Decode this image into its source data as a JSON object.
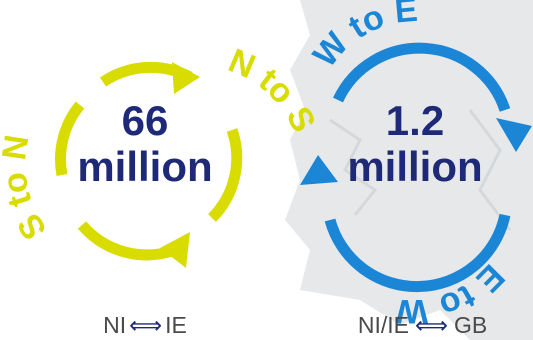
{
  "colors": {
    "yellow": "#d8dc00",
    "blue": "#1b86d6",
    "navy": "#1e2a78",
    "map": "#e6e8ea"
  },
  "left_cycle": {
    "value": "66",
    "unit": "million",
    "arc_left_label": "S to N",
    "arc_right_label": "N to S",
    "caption_left": "NI",
    "caption_arrow": "⟺",
    "caption_right": "IE"
  },
  "right_cycle": {
    "value": "1.2",
    "unit": "million",
    "arc_top_label": "W to E",
    "arc_bottom_label": "E to W",
    "caption_left": "NI/IE",
    "caption_arrow": "⟺",
    "caption_right": "GB"
  }
}
